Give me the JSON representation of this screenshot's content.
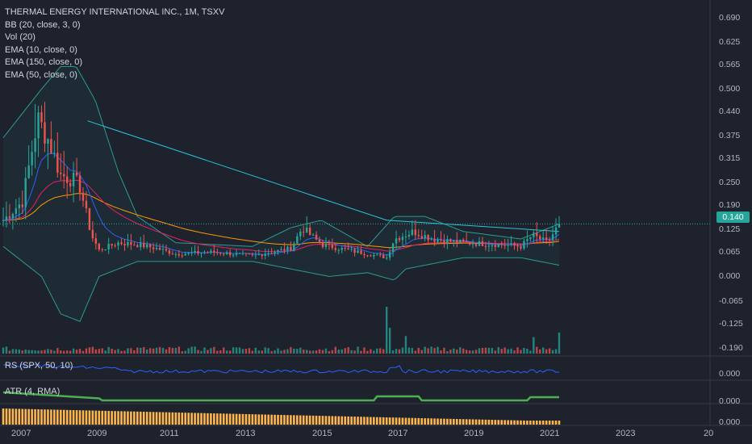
{
  "legend": {
    "title": "THERMAL ENERGY INTERNATIONAL INC., 1M, TSXV",
    "bb": "BB (20, close, 3, 0)",
    "vol": "Vol (20)",
    "ema10": "EMA (10, close, 0)",
    "ema150": "EMA (150, close, 0)",
    "ema50": "EMA (50, close, 0)"
  },
  "panes": {
    "rs_label": "RS (SPX, 50, 10)",
    "rs_value": "0.000",
    "atr_label": "ATR (4, RMA)",
    "atr_value": "0.000",
    "bottom_value": "0.000"
  },
  "last_price": "0.140",
  "colors": {
    "background": "#1e222d",
    "up": "#26a69a",
    "down": "#ef5350",
    "bb": "#2a9d8f",
    "ema10": "#2962ff",
    "ema50": "#e91e63",
    "ema150": "#ff9800",
    "trendline": "#26c6da",
    "rs": "#2962ff",
    "atr": "#4caf50",
    "bottom_bars": "#ffb74d"
  },
  "chart_data": {
    "type": "candlestick",
    "interval": "1M",
    "x_axis_labels": [
      "2007",
      "2009",
      "2011",
      "2013",
      "2015",
      "2017",
      "2019",
      "2021",
      "2023",
      "20"
    ],
    "y_axis_labels": [
      "0.690",
      "0.625",
      "0.565",
      "0.500",
      "0.440",
      "0.375",
      "0.315",
      "0.250",
      "0.190",
      "0.125",
      "0.065",
      "0.000",
      "-0.065",
      "-0.125",
      "-0.190"
    ],
    "ylim": [
      -0.21,
      0.72
    ],
    "x_start_year": 2006.5,
    "x_end_year": 2021.0,
    "last_close": 0.14,
    "close_anchors": [
      [
        2006.5,
        0.15
      ],
      [
        2007.0,
        0.2
      ],
      [
        2007.4,
        0.42
      ],
      [
        2007.7,
        0.36
      ],
      [
        2008.0,
        0.27
      ],
      [
        2008.3,
        0.26
      ],
      [
        2008.5,
        0.24
      ],
      [
        2008.8,
        0.11
      ],
      [
        2009.0,
        0.07
      ],
      [
        2009.5,
        0.09
      ],
      [
        2010.0,
        0.085
      ],
      [
        2010.5,
        0.075
      ],
      [
        2011.0,
        0.06
      ],
      [
        2012.0,
        0.065
      ],
      [
        2013.0,
        0.055
      ],
      [
        2014.0,
        0.075
      ],
      [
        2014.3,
        0.13
      ],
      [
        2014.8,
        0.085
      ],
      [
        2015.5,
        0.07
      ],
      [
        2016.5,
        0.05
      ],
      [
        2016.7,
        0.1
      ],
      [
        2017.2,
        0.12
      ],
      [
        2017.7,
        0.1
      ],
      [
        2018.5,
        0.09
      ],
      [
        2019.5,
        0.085
      ],
      [
        2020.0,
        0.08
      ],
      [
        2020.3,
        0.11
      ],
      [
        2020.7,
        0.09
      ],
      [
        2021.0,
        0.14
      ]
    ],
    "trendline": [
      [
        2008.7,
        0.415
      ],
      [
        2016.5,
        0.15
      ],
      [
        2021.0,
        0.12
      ]
    ],
    "bb_upper_anchors": [
      [
        2006.5,
        0.37
      ],
      [
        2007.5,
        0.5
      ],
      [
        2008.0,
        0.56
      ],
      [
        2008.4,
        0.56
      ],
      [
        2008.9,
        0.47
      ],
      [
        2009.5,
        0.28
      ],
      [
        2010.0,
        0.16
      ],
      [
        2011.0,
        0.09
      ],
      [
        2013.0,
        0.08
      ],
      [
        2014.0,
        0.13
      ],
      [
        2014.8,
        0.15
      ],
      [
        2016.0,
        0.08
      ],
      [
        2016.7,
        0.16
      ],
      [
        2017.5,
        0.16
      ],
      [
        2018.5,
        0.12
      ],
      [
        2020.0,
        0.1
      ],
      [
        2021.0,
        0.14
      ]
    ],
    "bb_lower_anchors": [
      [
        2006.5,
        0.08
      ],
      [
        2007.5,
        0.0
      ],
      [
        2008.0,
        -0.1
      ],
      [
        2008.5,
        -0.12
      ],
      [
        2009.0,
        0.0
      ],
      [
        2009.5,
        0.02
      ],
      [
        2010.0,
        0.04
      ],
      [
        2013.0,
        0.04
      ],
      [
        2014.0,
        0.02
      ],
      [
        2015.0,
        0.0
      ],
      [
        2016.0,
        0.01
      ],
      [
        2016.7,
        -0.01
      ],
      [
        2017.0,
        0.02
      ],
      [
        2018.5,
        0.05
      ],
      [
        2020.0,
        0.05
      ],
      [
        2021.0,
        0.03
      ]
    ],
    "volume_spikes": [
      [
        2016.5,
        0.4
      ],
      [
        2016.6,
        0.22
      ],
      [
        2017.0,
        0.15
      ],
      [
        2020.3,
        0.14
      ],
      [
        2021.0,
        0.18
      ]
    ]
  }
}
